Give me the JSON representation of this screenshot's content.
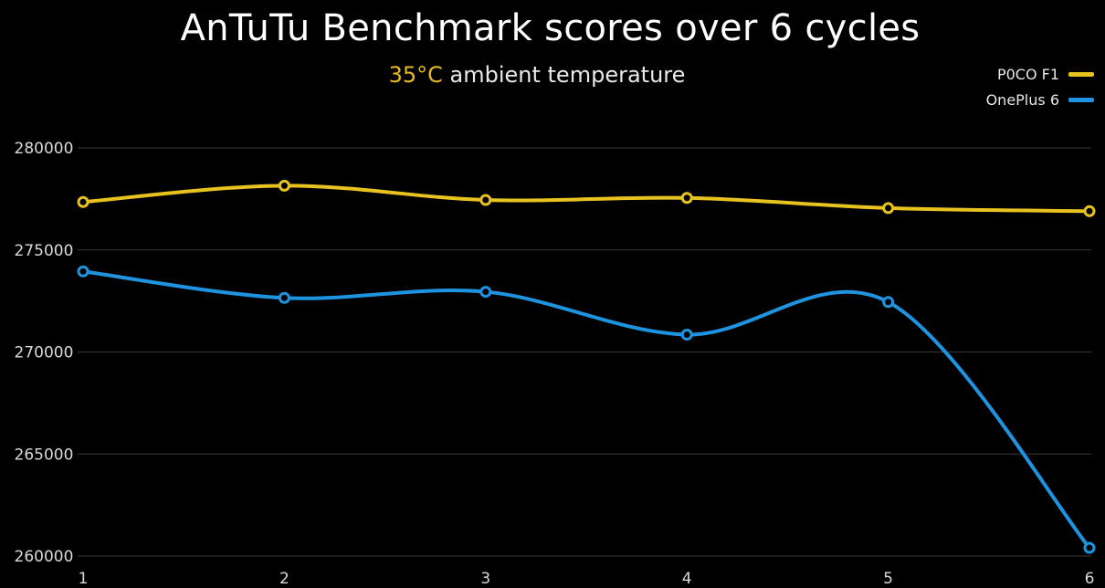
{
  "chart_data": {
    "type": "line",
    "title": "AnTuTu Benchmark scores over 6 cycles",
    "subtitle_highlight": "35°C",
    "subtitle_rest": " ambient temperature",
    "xlabel": "",
    "ylabel": "",
    "categories": [
      "1",
      "2",
      "3",
      "4",
      "5",
      "6"
    ],
    "ylim": [
      260000,
      280000
    ],
    "yticks": [
      260000,
      265000,
      270000,
      275000,
      280000
    ],
    "ytick_labels": [
      "260000",
      "265000",
      "270000",
      "275000",
      "280000"
    ],
    "grid": true,
    "legend_position": "top-right",
    "series": [
      {
        "name": "P0CO F1",
        "color": "#e8c21e",
        "values": [
          277350,
          278150,
          277450,
          277550,
          277050,
          276900
        ]
      },
      {
        "name": "OnePlus 6",
        "color": "#1e94e0",
        "values": [
          273950,
          272650,
          272950,
          270850,
          272450,
          260400
        ]
      }
    ]
  }
}
